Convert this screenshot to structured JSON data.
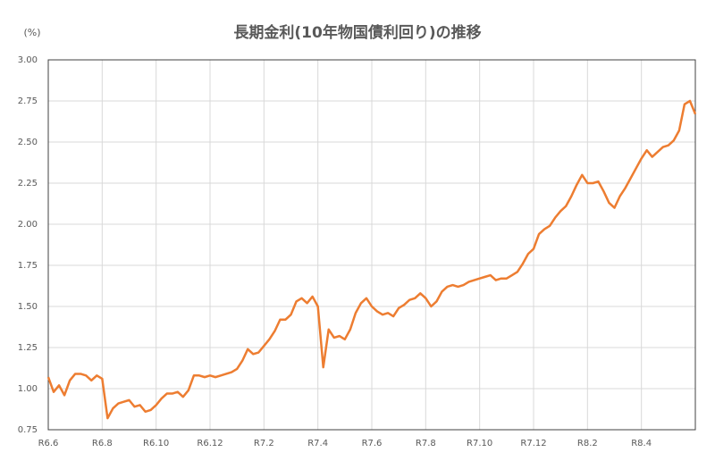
{
  "chart_data": {
    "type": "line",
    "title": "長期金利(10年物国債利回り)の推移",
    "y_unit": "(%)",
    "categories": [
      "R6.6",
      null,
      null,
      null,
      null,
      null,
      null,
      null,
      null,
      null,
      "R6.8",
      null,
      null,
      null,
      null,
      null,
      null,
      null,
      null,
      null,
      "R6.10",
      null,
      null,
      null,
      null,
      null,
      null,
      null,
      null,
      null,
      "R6.12",
      null,
      null,
      null,
      null,
      null,
      null,
      null,
      null,
      null,
      "R7.2",
      null,
      null,
      null,
      null,
      null,
      null,
      null,
      null,
      null,
      "R7.4",
      null,
      null,
      null,
      null,
      null,
      null,
      null,
      null,
      null,
      "R7.6",
      null,
      null,
      null,
      null,
      null,
      null,
      null,
      null,
      null,
      "R7.8",
      null,
      null,
      null,
      null,
      null,
      null,
      null,
      null,
      null,
      "R7.10",
      null,
      null,
      null,
      null,
      null,
      null,
      null,
      null,
      null,
      "R7.12",
      null,
      null,
      null,
      null,
      null,
      null,
      null,
      null,
      null,
      "R8.2",
      null,
      null,
      null,
      null,
      null,
      null,
      null,
      null,
      null,
      "R8.4",
      null,
      null,
      null,
      null,
      null,
      null,
      null,
      null,
      null,
      null
    ],
    "series": [
      {
        "name": "10年物国債利回り",
        "color": "#ed7d31",
        "values": [
          1.07,
          0.98,
          1.02,
          0.96,
          1.05,
          1.09,
          1.09,
          1.08,
          1.05,
          1.08,
          1.06,
          0.82,
          0.88,
          0.91,
          0.92,
          0.93,
          0.89,
          0.9,
          0.86,
          0.87,
          0.9,
          0.94,
          0.97,
          0.97,
          0.98,
          0.95,
          0.99,
          1.08,
          1.08,
          1.07,
          1.08,
          1.07,
          1.08,
          1.09,
          1.1,
          1.12,
          1.17,
          1.24,
          1.21,
          1.22,
          1.26,
          1.3,
          1.35,
          1.42,
          1.42,
          1.45,
          1.53,
          1.55,
          1.52,
          1.56,
          1.5,
          1.13,
          1.36,
          1.31,
          1.32,
          1.3,
          1.36,
          1.46,
          1.52,
          1.55,
          1.5,
          1.47,
          1.45,
          1.46,
          1.44,
          1.49,
          1.51,
          1.54,
          1.55,
          1.58,
          1.55,
          1.5,
          1.53,
          1.59,
          1.62,
          1.63,
          1.62,
          1.63,
          1.65,
          1.66,
          1.67,
          1.68,
          1.69,
          1.66,
          1.67,
          1.67,
          1.69,
          1.71,
          1.76,
          1.82,
          1.85,
          1.94,
          1.97,
          1.99,
          2.04,
          2.08,
          2.11,
          2.17,
          2.24,
          2.3,
          2.25,
          2.25,
          2.26,
          2.2,
          2.13,
          2.1,
          2.17,
          2.22,
          2.28,
          2.34,
          2.4,
          2.45,
          2.41,
          2.44,
          2.47,
          2.48,
          2.51,
          2.57,
          2.73,
          2.75,
          2.67
        ]
      }
    ],
    "ylim": [
      0.75,
      3.0
    ],
    "yticks": [
      {
        "value": 0.75,
        "label": "0.75"
      },
      {
        "value": 1.0,
        "label": "1.00"
      },
      {
        "value": 1.25,
        "label": "1.25"
      },
      {
        "value": 1.5,
        "label": "1.50"
      },
      {
        "value": 1.75,
        "label": "1.75"
      },
      {
        "value": 2.0,
        "label": "2.00"
      },
      {
        "value": 2.25,
        "label": "2.25"
      },
      {
        "value": 2.5,
        "label": "2.50"
      },
      {
        "value": 2.75,
        "label": "2.75"
      },
      {
        "value": 3.0,
        "label": "3.00"
      }
    ],
    "grid": true
  }
}
